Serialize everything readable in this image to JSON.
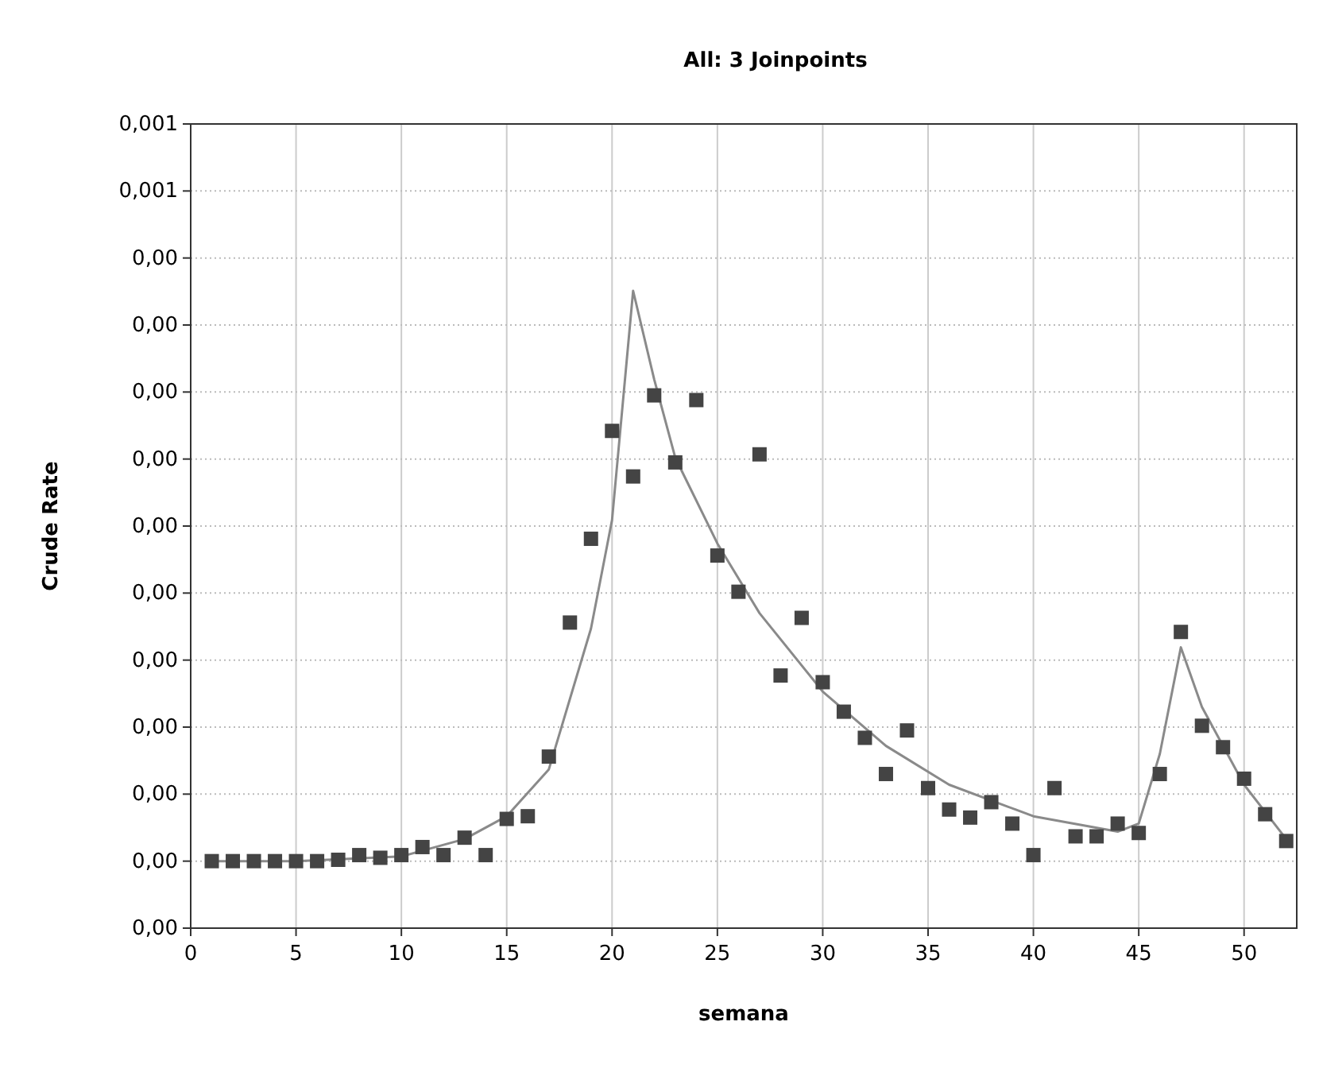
{
  "chart_data": {
    "type": "scatter",
    "title": "All: 3 Joinpoints",
    "xlabel": "semana",
    "ylabel": "Crude Rate",
    "xlim": [
      0,
      52.5
    ],
    "xticks": [
      0,
      5,
      10,
      15,
      20,
      25,
      30,
      35,
      40,
      45,
      50
    ],
    "ylim": [
      0,
      0.0012
    ],
    "yticks": [
      {
        "value": 0,
        "label": "0,00"
      },
      {
        "value": 0.0001,
        "label": "0,00"
      },
      {
        "value": 0.0002,
        "label": "0,00"
      },
      {
        "value": 0.0003,
        "label": "0,00"
      },
      {
        "value": 0.0004,
        "label": "0,00"
      },
      {
        "value": 0.0005,
        "label": "0,00"
      },
      {
        "value": 0.0006,
        "label": "0,00"
      },
      {
        "value": 0.0007,
        "label": "0,00"
      },
      {
        "value": 0.0008,
        "label": "0,00"
      },
      {
        "value": 0.0009,
        "label": "0,00"
      },
      {
        "value": 0.001,
        "label": "0,00"
      },
      {
        "value": 0.0011,
        "label": "0,001"
      },
      {
        "value": 0.0012,
        "label": "0,001"
      }
    ],
    "grid": true,
    "series": [
      {
        "color": "#444444",
        "marker": "square",
        "x": [
          1,
          2,
          3,
          4,
          5,
          6,
          7,
          8,
          9,
          10,
          11,
          12,
          13,
          14,
          15,
          16,
          17,
          18,
          19,
          20,
          21,
          22,
          23,
          24,
          25,
          26,
          27,
          28,
          29,
          30,
          31,
          32,
          33,
          34,
          35,
          36,
          37,
          38,
          39,
          40,
          41,
          42,
          43,
          44,
          45,
          46,
          47,
          48,
          49,
          50,
          51,
          52
        ],
        "values": [
          0.0001,
          0.0001,
          0.0001,
          0.0001,
          0.0001,
          0.0001,
          0.000102,
          0.000109,
          0.000105,
          0.000109,
          0.000121,
          0.000109,
          0.000135,
          0.000109,
          0.000163,
          0.000167,
          0.000256,
          0.000456,
          0.000581,
          0.000742,
          0.000674,
          0.000795,
          0.000695,
          0.000788,
          0.000556,
          0.000502,
          0.000707,
          0.000377,
          0.000463,
          0.000367,
          0.000323,
          0.000284,
          0.00023,
          0.000295,
          0.000209,
          0.000177,
          0.000165,
          0.000188,
          0.000156,
          0.000109,
          0.000209,
          0.000137,
          0.000137,
          0.000156,
          0.000142,
          0.00023,
          0.000442,
          0.000302,
          0.00027,
          0.000223,
          0.00017,
          0.00013
        ]
      },
      {
        "type": "line",
        "color": "#8a8a8a",
        "line_style": "solid",
        "x": [
          1,
          5,
          10,
          13,
          15,
          17,
          19,
          20,
          21,
          22,
          23,
          25,
          27,
          30,
          33,
          36,
          40,
          44,
          45,
          46,
          47,
          48,
          50,
          52
        ],
        "values": [
          0.0001,
          0.0001,
          0.000107,
          0.000133,
          0.000167,
          0.000237,
          0.000447,
          0.000609,
          0.000951,
          0.000819,
          0.000702,
          0.000574,
          0.00047,
          0.000353,
          0.000272,
          0.000214,
          0.000167,
          0.000144,
          0.000156,
          0.00026,
          0.000419,
          0.00033,
          0.000214,
          0.000133
        ]
      }
    ]
  }
}
